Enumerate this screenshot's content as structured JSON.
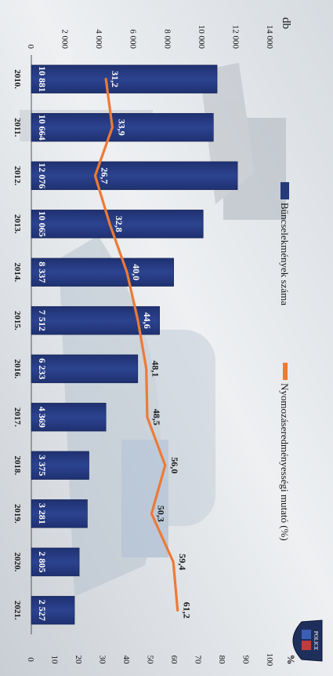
{
  "chart_data": {
    "type": "bar",
    "categories": [
      "2010.",
      "2011.",
      "2012.",
      "2013.",
      "2014.",
      "2015.",
      "2016.",
      "2017.",
      "2018.",
      "2019.",
      "2020.",
      "2021."
    ],
    "series": [
      {
        "name": "Bűncselekmények száma",
        "type": "bar",
        "axis": "left",
        "values": [
          10881,
          10664,
          12076,
          10065,
          8337,
          7512,
          6233,
          4369,
          3375,
          3281,
          2805,
          2527
        ],
        "labels": [
          "10 881",
          "10 664",
          "12 076",
          "10 065",
          "8 337",
          "7 512",
          "6 233",
          "4 369",
          "3 375",
          "3 281",
          "2 805",
          "2 527"
        ],
        "color": "#263a7a"
      },
      {
        "name": "Nyomozáseredményességi mutató (%)",
        "type": "line",
        "axis": "right",
        "values": [
          31.2,
          33.9,
          26.7,
          32.8,
          40.0,
          44.6,
          48.1,
          48.5,
          56.0,
          50.3,
          59.4,
          61.2
        ],
        "labels": [
          "31,2",
          "33,9",
          "26,7",
          "32,8",
          "40,0",
          "44,6",
          "48,1",
          "48,5",
          "56,0",
          "50,3",
          "59,4",
          "61,2"
        ],
        "color": "#ec7a36"
      }
    ],
    "left_axis": {
      "unit": "db",
      "ylim": [
        0,
        14000
      ],
      "ticks": [
        0,
        2000,
        4000,
        6000,
        8000,
        10000,
        12000,
        14000
      ],
      "tick_labels": [
        "0",
        "2 000",
        "4 000",
        "6 000",
        "8 000",
        "10 000",
        "12 000",
        "14 000"
      ]
    },
    "right_axis": {
      "unit": "%",
      "ylim": [
        0,
        100
      ],
      "ticks": [
        0,
        10,
        20,
        30,
        40,
        50,
        60,
        70,
        80,
        90,
        100
      ],
      "tick_labels": [
        "0",
        "10",
        "20",
        "30",
        "40",
        "50",
        "60",
        "70",
        "80",
        "90",
        "100"
      ]
    },
    "legend_position": "top",
    "orientation": "rotated 90 degrees clockwise",
    "badge_text": "POLICE"
  }
}
